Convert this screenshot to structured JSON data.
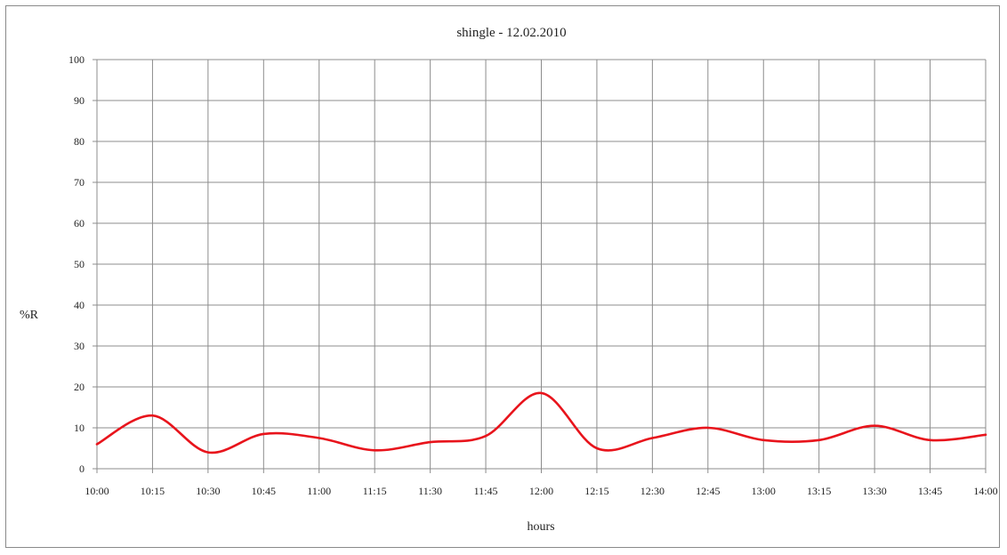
{
  "chart_data": {
    "type": "line",
    "title": "shingle - 12.02.2010",
    "xlabel": "hours",
    "ylabel": "%R",
    "categories": [
      "10:00",
      "10:15",
      "10:30",
      "10:45",
      "11:00",
      "11:15",
      "11:30",
      "11:45",
      "12:00",
      "12:15",
      "12:30",
      "12:45",
      "13:00",
      "13:15",
      "13:30",
      "13:45",
      "14:00"
    ],
    "yticks": [
      0,
      10,
      20,
      30,
      40,
      50,
      60,
      70,
      80,
      90,
      100
    ],
    "ylim": [
      0,
      100
    ],
    "grid": true,
    "legend": "none",
    "series": [
      {
        "values": [
          6,
          13,
          4,
          8.5,
          7.5,
          4.5,
          6.5,
          8,
          18.5,
          5,
          7.5,
          10,
          7,
          7,
          10.5,
          7,
          8.3
        ],
        "color": "#e8141c"
      }
    ]
  }
}
